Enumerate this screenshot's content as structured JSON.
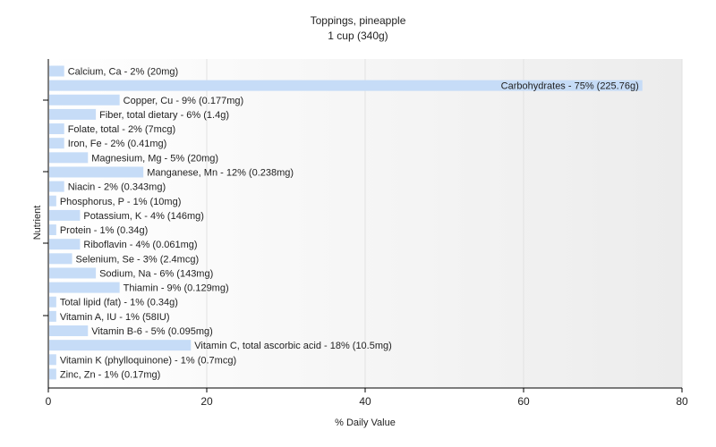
{
  "chart_data": {
    "type": "bar",
    "orientation": "horizontal",
    "title": "Toppings, pineapple",
    "subtitle": "1 cup (340g)",
    "xlabel": "% Daily Value",
    "ylabel": "Nutrient",
    "xlim": [
      0,
      80
    ],
    "xticks": [
      "0",
      "20",
      "40",
      "60",
      "80"
    ],
    "grid": true,
    "bar_color": "#c6dcf7",
    "categories": [
      "Calcium, Ca",
      "Carbohydrates",
      "Copper, Cu",
      "Fiber, total dietary",
      "Folate, total",
      "Iron, Fe",
      "Magnesium, Mg",
      "Manganese, Mn",
      "Niacin",
      "Phosphorus, P",
      "Potassium, K",
      "Protein",
      "Riboflavin",
      "Selenium, Se",
      "Sodium, Na",
      "Thiamin",
      "Total lipid (fat)",
      "Vitamin A, IU",
      "Vitamin B-6",
      "Vitamin C, total ascorbic acid",
      "Vitamin K (phylloquinone)",
      "Zinc, Zn"
    ],
    "values": [
      2,
      75,
      9,
      6,
      2,
      2,
      5,
      12,
      2,
      1,
      4,
      1,
      4,
      3,
      6,
      9,
      1,
      1,
      5,
      18,
      1,
      1
    ],
    "labels": [
      "Calcium, Ca - 2% (20mg)",
      "Carbohydrates - 75% (225.76g)",
      "Copper, Cu - 9% (0.177mg)",
      "Fiber, total dietary - 6% (1.4g)",
      "Folate, total - 2% (7mcg)",
      "Iron, Fe - 2% (0.41mg)",
      "Magnesium, Mg - 5% (20mg)",
      "Manganese, Mn - 12% (0.238mg)",
      "Niacin - 2% (0.343mg)",
      "Phosphorus, P - 1% (10mg)",
      "Potassium, K - 4% (146mg)",
      "Protein - 1% (0.34g)",
      "Riboflavin - 4% (0.061mg)",
      "Selenium, Se - 3% (2.4mcg)",
      "Sodium, Na - 6% (143mg)",
      "Thiamin - 9% (0.129mg)",
      "Total lipid (fat) - 1% (0.34g)",
      "Vitamin A, IU - 1% (58IU)",
      "Vitamin B-6 - 5% (0.095mg)",
      "Vitamin C, total ascorbic acid - 18% (10.5mg)",
      "Vitamin K (phylloquinone) - 1% (0.7mcg)",
      "Zinc, Zn - 1% (0.17mg)"
    ]
  }
}
